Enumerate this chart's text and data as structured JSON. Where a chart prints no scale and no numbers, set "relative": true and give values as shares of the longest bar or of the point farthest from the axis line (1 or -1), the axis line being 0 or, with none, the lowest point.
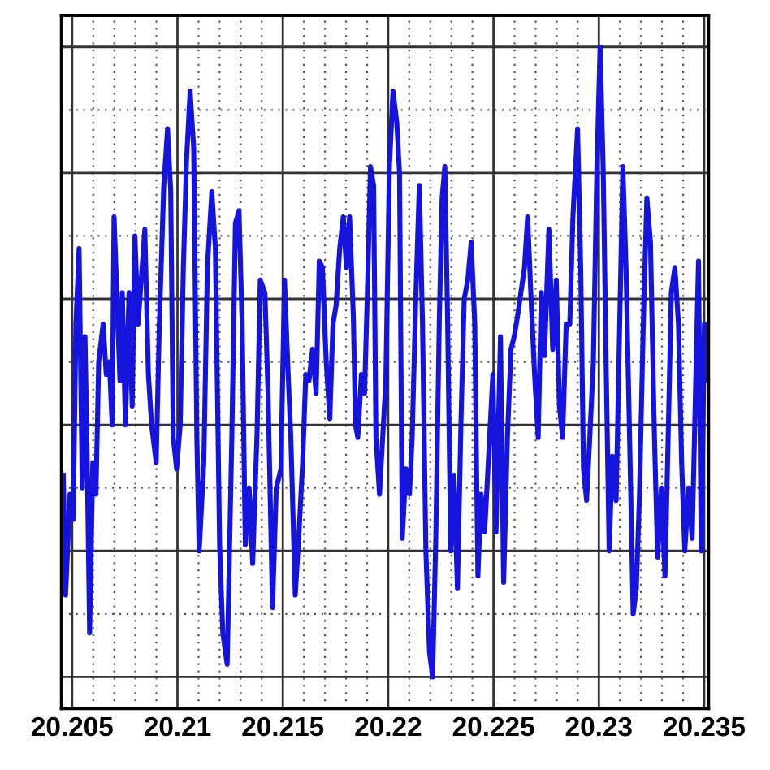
{
  "chart_data": {
    "type": "line",
    "relative": true,
    "grid": true,
    "line_style": "solid",
    "marker": "none",
    "xlim": [
      20.2045,
      20.2352
    ],
    "xticks": [
      20.205,
      20.21,
      20.215,
      20.22,
      20.225,
      20.23,
      20.235
    ],
    "series": [
      {
        "color": "#1414dc",
        "x": [
          20.20458,
          20.20469,
          20.2049,
          20.20505,
          20.20518,
          20.20533,
          20.20548,
          20.20561,
          20.2057,
          20.20583,
          20.20598,
          20.20613,
          20.20626,
          20.20647,
          20.20662,
          20.20677,
          20.2069,
          20.20699,
          20.20712,
          20.20727,
          20.20738,
          20.20753,
          20.2077,
          20.20785,
          20.20798,
          20.20813,
          20.20828,
          20.20845,
          20.20862,
          20.20877,
          20.20899,
          20.20914,
          20.20935,
          20.20953,
          20.20968,
          20.2098,
          20.20996,
          20.21013,
          20.21028,
          20.21043,
          20.2106,
          20.21077,
          20.21092,
          20.21103,
          20.21125,
          20.21142,
          20.21163,
          20.2118,
          20.212,
          20.21215,
          20.21236,
          20.21258,
          20.21275,
          20.21292,
          20.21307,
          20.21322,
          20.2134,
          20.21357,
          20.21378,
          20.21393,
          20.21415,
          20.2143,
          20.21451,
          20.21469,
          20.21491,
          20.21508,
          20.21523,
          20.21538,
          20.21559,
          20.21577,
          20.21594,
          20.21609,
          20.21624,
          20.21641,
          20.21658,
          20.21673,
          20.21688,
          20.21706,
          20.21723,
          20.21738,
          20.21753,
          20.2177,
          20.21787,
          20.21802,
          20.21817,
          20.21835,
          20.21845,
          20.21856,
          20.21873,
          20.21888,
          20.21903,
          20.21916,
          20.21931,
          20.21942,
          20.21959,
          20.21974,
          20.21989,
          20.22006,
          20.22023,
          20.22041,
          20.22054,
          20.22067,
          20.22084,
          20.22101,
          20.22114,
          20.22131,
          20.22148,
          20.22163,
          20.22179,
          20.22196,
          20.22211,
          20.22226,
          20.22243,
          20.22256,
          20.22269,
          20.22282,
          20.22297,
          20.22312,
          20.22329,
          20.22346,
          20.22361,
          20.22378,
          20.22394,
          20.22411,
          20.22426,
          20.22441,
          20.22458,
          20.22497,
          20.22512,
          20.22533,
          20.22548,
          20.22566,
          20.22583,
          20.22598,
          20.22613,
          20.2263,
          20.22647,
          20.22662,
          20.22677,
          20.22695,
          20.22712,
          20.22727,
          20.22742,
          20.22763,
          20.22781,
          20.22798,
          20.22813,
          20.22828,
          20.22845,
          20.22862,
          20.22877,
          20.22899,
          20.22914,
          20.22927,
          20.22942,
          20.22957,
          20.22974,
          20.22991,
          20.23006,
          20.23021,
          20.23034,
          20.23049,
          20.23064,
          20.23082,
          20.23099,
          20.23114,
          20.23129,
          20.23146,
          20.23163,
          20.23178,
          20.23193,
          20.23211,
          20.23228,
          20.23245,
          20.23264,
          20.23279,
          20.23297,
          20.23314,
          20.23329,
          20.23344,
          20.23361,
          20.23378,
          20.23393,
          20.23408,
          20.23426,
          20.23443,
          20.2346,
          20.23473,
          20.23486,
          20.23501,
          20.23516
        ],
        "values": [
          0.32,
          0.13,
          0.29,
          0.25,
          0.56,
          0.68,
          0.3,
          0.54,
          0.38,
          0.07,
          0.34,
          0.29,
          0.5,
          0.56,
          0.48,
          0.5,
          0.4,
          0.73,
          0.61,
          0.47,
          0.61,
          0.4,
          0.61,
          0.43,
          0.7,
          0.56,
          0.63,
          0.71,
          0.48,
          0.4,
          0.34,
          0.56,
          0.78,
          0.87,
          0.77,
          0.38,
          0.33,
          0.4,
          0.65,
          0.82,
          0.93,
          0.84,
          0.38,
          0.2,
          0.34,
          0.65,
          0.77,
          0.68,
          0.21,
          0.07,
          0.02,
          0.38,
          0.72,
          0.74,
          0.56,
          0.21,
          0.3,
          0.18,
          0.39,
          0.63,
          0.61,
          0.45,
          0.11,
          0.3,
          0.33,
          0.63,
          0.5,
          0.38,
          0.13,
          0.23,
          0.34,
          0.48,
          0.47,
          0.52,
          0.45,
          0.66,
          0.65,
          0.5,
          0.41,
          0.56,
          0.59,
          0.68,
          0.73,
          0.65,
          0.73,
          0.57,
          0.4,
          0.38,
          0.48,
          0.45,
          0.63,
          0.81,
          0.78,
          0.38,
          0.29,
          0.38,
          0.47,
          0.81,
          0.93,
          0.88,
          0.8,
          0.22,
          0.33,
          0.29,
          0.38,
          0.6,
          0.78,
          0.56,
          0.2,
          0.04,
          0.0,
          0.22,
          0.57,
          0.76,
          0.81,
          0.57,
          0.2,
          0.32,
          0.14,
          0.41,
          0.6,
          0.63,
          0.69,
          0.56,
          0.16,
          0.29,
          0.23,
          0.48,
          0.23,
          0.54,
          0.15,
          0.38,
          0.52,
          0.54,
          0.57,
          0.61,
          0.65,
          0.73,
          0.61,
          0.48,
          0.38,
          0.61,
          0.51,
          0.71,
          0.52,
          0.63,
          0.43,
          0.38,
          0.56,
          0.56,
          0.73,
          0.87,
          0.65,
          0.33,
          0.28,
          0.38,
          0.5,
          0.81,
          1.0,
          0.8,
          0.51,
          0.2,
          0.35,
          0.28,
          0.56,
          0.81,
          0.65,
          0.38,
          0.1,
          0.14,
          0.29,
          0.56,
          0.76,
          0.69,
          0.38,
          0.19,
          0.3,
          0.16,
          0.38,
          0.61,
          0.65,
          0.56,
          0.34,
          0.2,
          0.3,
          0.22,
          0.47,
          0.66,
          0.2,
          0.56,
          0.47
        ]
      }
    ]
  }
}
